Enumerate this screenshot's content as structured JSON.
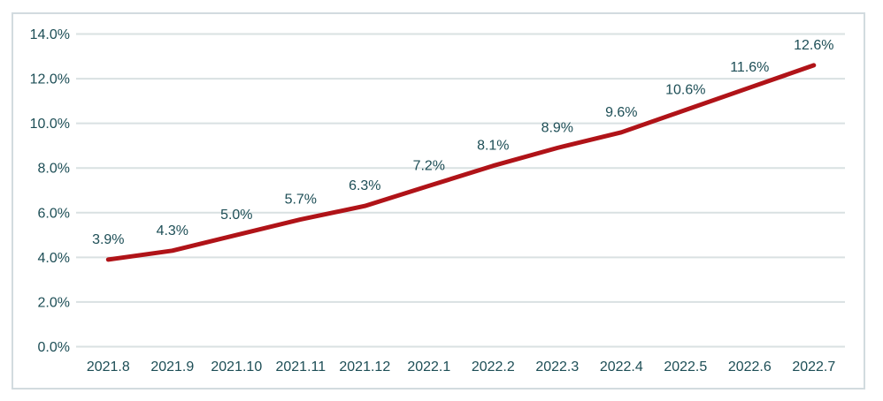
{
  "chart_data": {
    "type": "line",
    "categories": [
      "2021.8",
      "2021.9",
      "2021.10",
      "2021.11",
      "2021.12",
      "2022.1",
      "2022.2",
      "2022.3",
      "2022.4",
      "2022.5",
      "2022.6",
      "2022.7"
    ],
    "values": [
      3.9,
      4.3,
      5.0,
      5.7,
      6.3,
      7.2,
      8.1,
      8.9,
      9.6,
      10.6,
      11.6,
      12.6
    ],
    "data_labels": [
      "3.9%",
      "4.3%",
      "5.0%",
      "5.7%",
      "6.3%",
      "7.2%",
      "8.1%",
      "8.9%",
      "9.6%",
      "10.6%",
      "11.6%",
      "12.6%"
    ],
    "y_tick_labels": [
      "0.0%",
      "2.0%",
      "4.0%",
      "6.0%",
      "8.0%",
      "10.0%",
      "12.0%",
      "14.0%"
    ],
    "title": "",
    "xlabel": "",
    "ylabel": "",
    "ylim": [
      0,
      14
    ],
    "y_step": 2,
    "grid": true,
    "legend_position": "none",
    "colors": {
      "line": "#b01318",
      "text": "#1d4e56",
      "gridline": "#d9e1e2",
      "border": "#d2dbdf",
      "background": "#ffffff"
    }
  }
}
